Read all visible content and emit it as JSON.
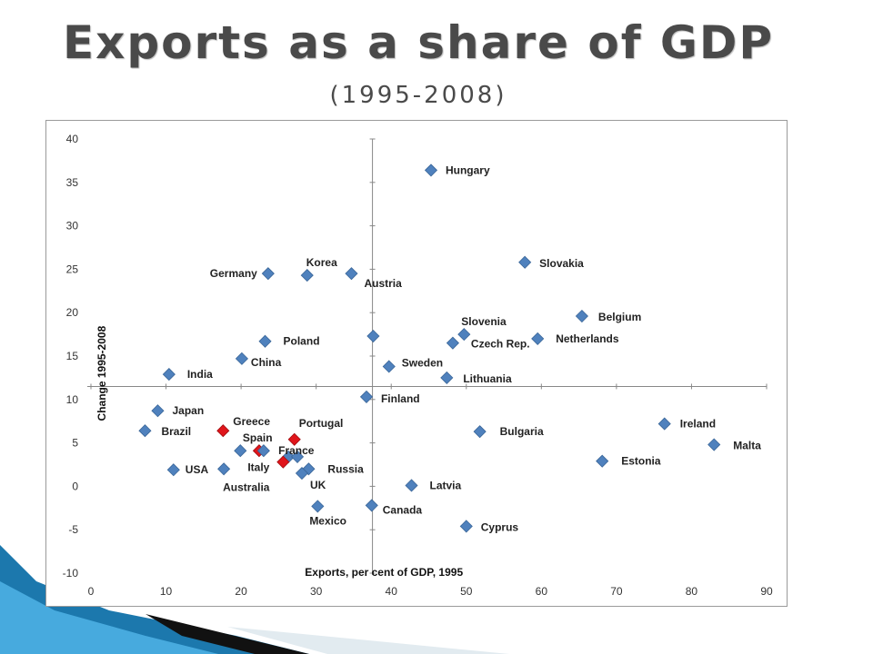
{
  "slide": {
    "title": "Exports as a share of GDP",
    "subtitle": "(1995-2008)"
  },
  "colors": {
    "marker_default": "#4f81bd",
    "marker_highlight": "#e0151b",
    "decoration_blue": "#1f7fb4",
    "decoration_dark": "#111111"
  },
  "chart_data": {
    "type": "scatter",
    "title": "",
    "xlabel": "Exports, per cent of GDP, 1995",
    "ylabel": "Change 1995-2008",
    "xlim": [
      0,
      90
    ],
    "ylim": [
      -10,
      40
    ],
    "x_ticks": [
      "0",
      "10",
      "20",
      "30",
      "40",
      "50",
      "60",
      "70",
      "80",
      "90"
    ],
    "y_ticks": [
      "40",
      "35",
      "30",
      "25",
      "20",
      "15",
      "10",
      "5",
      "0",
      "-5",
      "-10"
    ],
    "grid": false,
    "axes_cross_at": {
      "x": 37.5,
      "y": 11.5
    },
    "points": [
      {
        "label": "Hungary",
        "x": 45.3,
        "y": 36.4,
        "highlight": false
      },
      {
        "label": "Slovakia",
        "x": 57.8,
        "y": 25.8,
        "highlight": false
      },
      {
        "label": "Germany",
        "x": 23.6,
        "y": 24.5,
        "highlight": false
      },
      {
        "label": "Korea",
        "x": 28.8,
        "y": 24.3,
        "highlight": false
      },
      {
        "label": "Austria",
        "x": 34.7,
        "y": 24.5,
        "highlight": false
      },
      {
        "label": "Belgium",
        "x": 65.4,
        "y": 19.6,
        "highlight": false
      },
      {
        "label": "Slovenia",
        "x": 49.7,
        "y": 17.5,
        "highlight": false
      },
      {
        "label": "Czech Rep.",
        "x": 48.2,
        "y": 16.5,
        "highlight": false
      },
      {
        "label": "Netherlands",
        "x": 59.5,
        "y": 17.0,
        "highlight": false
      },
      {
        "label": "",
        "x": 37.6,
        "y": 17.3,
        "highlight": false
      },
      {
        "label": "Poland",
        "x": 23.2,
        "y": 16.7,
        "highlight": false
      },
      {
        "label": "China",
        "x": 20.1,
        "y": 14.7,
        "highlight": false
      },
      {
        "label": "Sweden",
        "x": 39.7,
        "y": 13.8,
        "highlight": false
      },
      {
        "label": "India",
        "x": 10.4,
        "y": 12.9,
        "highlight": false
      },
      {
        "label": "Lithuania",
        "x": 47.4,
        "y": 12.5,
        "highlight": false
      },
      {
        "label": "Finland",
        "x": 36.7,
        "y": 10.3,
        "highlight": false
      },
      {
        "label": "Japan",
        "x": 8.9,
        "y": 8.7,
        "highlight": false
      },
      {
        "label": "Ireland",
        "x": 76.4,
        "y": 7.2,
        "highlight": false
      },
      {
        "label": "Brazil",
        "x": 7.2,
        "y": 6.4,
        "highlight": false
      },
      {
        "label": "Bulgaria",
        "x": 51.8,
        "y": 6.3,
        "highlight": false
      },
      {
        "label": "Greece",
        "x": 17.6,
        "y": 6.4,
        "highlight": true
      },
      {
        "label": "Portugal",
        "x": 27.1,
        "y": 5.4,
        "highlight": true
      },
      {
        "label": "Malta",
        "x": 83.0,
        "y": 4.8,
        "highlight": false
      },
      {
        "label": "Spain",
        "x": 22.4,
        "y": 4.1,
        "highlight": true
      },
      {
        "label": "France",
        "x": 26.3,
        "y": 3.4,
        "highlight": false
      },
      {
        "label": "",
        "x": 19.9,
        "y": 4.1,
        "highlight": false
      },
      {
        "label": "",
        "x": 23.0,
        "y": 4.1,
        "highlight": false
      },
      {
        "label": "",
        "x": 27.5,
        "y": 3.4,
        "highlight": false
      },
      {
        "label": "Estonia",
        "x": 68.1,
        "y": 2.9,
        "highlight": false
      },
      {
        "label": "Italy",
        "x": 25.6,
        "y": 2.8,
        "highlight": true
      },
      {
        "label": "USA",
        "x": 11.0,
        "y": 1.9,
        "highlight": false
      },
      {
        "label": "Australia",
        "x": 17.7,
        "y": 2.0,
        "highlight": false
      },
      {
        "label": "Russia",
        "x": 29.0,
        "y": 2.0,
        "highlight": false
      },
      {
        "label": "UK",
        "x": 28.1,
        "y": 1.5,
        "highlight": false
      },
      {
        "label": "Latvia",
        "x": 42.7,
        "y": 0.1,
        "highlight": false
      },
      {
        "label": "Mexico",
        "x": 30.2,
        "y": -2.3,
        "highlight": false
      },
      {
        "label": "Canada",
        "x": 37.4,
        "y": -2.2,
        "highlight": false
      },
      {
        "label": "Cyprus",
        "x": 50.0,
        "y": -4.6,
        "highlight": false
      }
    ]
  }
}
